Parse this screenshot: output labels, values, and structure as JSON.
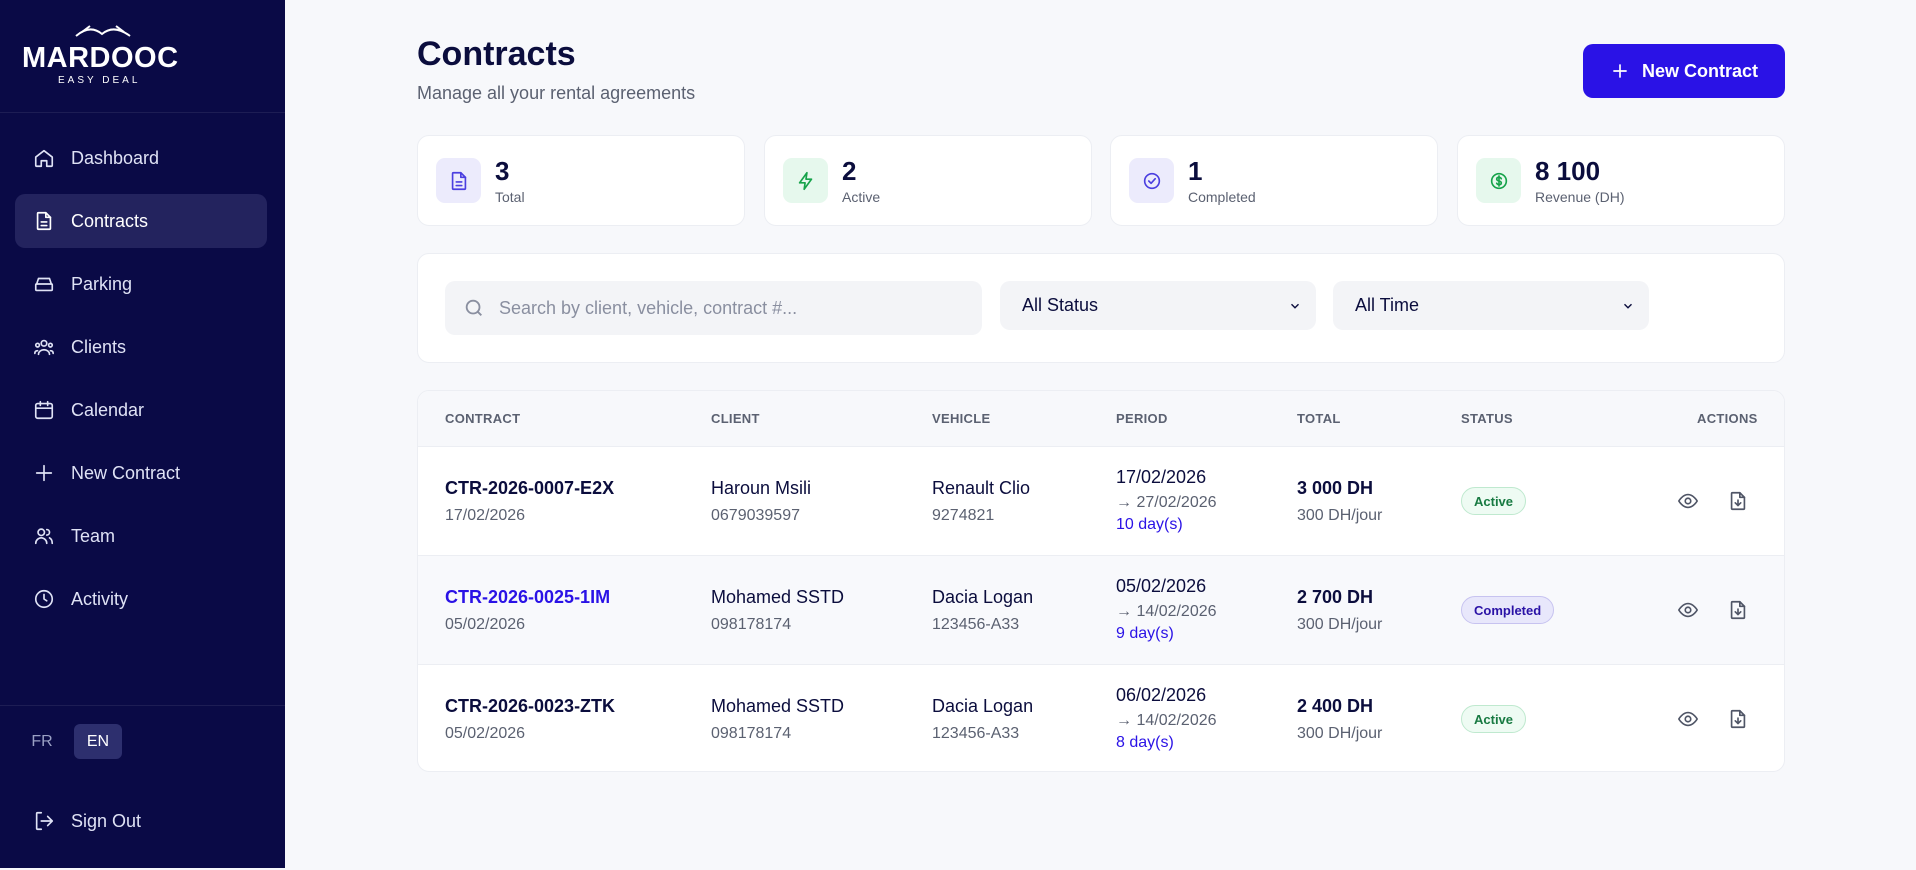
{
  "brand": {
    "name": "MARDOOC",
    "tagline": "EASY DEAL"
  },
  "sidebar": {
    "items": [
      {
        "label": "Dashboard",
        "icon": "home-icon"
      },
      {
        "label": "Contracts",
        "icon": "document-icon",
        "active": true
      },
      {
        "label": "Parking",
        "icon": "parking-icon"
      },
      {
        "label": "Clients",
        "icon": "users-icon"
      },
      {
        "label": "Calendar",
        "icon": "calendar-icon"
      },
      {
        "label": "New Contract",
        "icon": "plus-icon"
      },
      {
        "label": "Team",
        "icon": "team-icon"
      },
      {
        "label": "Activity",
        "icon": "clock-icon"
      }
    ],
    "lang": {
      "fr": "FR",
      "en": "EN",
      "selected": "EN"
    },
    "signout": "Sign Out"
  },
  "header": {
    "title": "Contracts",
    "subtitle": "Manage all your rental agreements",
    "new_button": "New Contract"
  },
  "stats": [
    {
      "value": "3",
      "label": "Total",
      "icon": "document-icon",
      "color": "#4b3fe0"
    },
    {
      "value": "2",
      "label": "Active",
      "icon": "bolt-icon",
      "color": "#16a34a"
    },
    {
      "value": "1",
      "label": "Completed",
      "icon": "check-circle-icon",
      "color": "#4b3fe0"
    },
    {
      "value": "8 100",
      "label": "Revenue (DH)",
      "icon": "dollar-icon",
      "color": "#16a34a"
    }
  ],
  "filters": {
    "search_placeholder": "Search by client, vehicle, contract #...",
    "status": "All Status",
    "time": "All Time"
  },
  "table": {
    "headers": {
      "contract": "CONTRACT",
      "client": "CLIENT",
      "vehicle": "VEHICLE",
      "period": "PERIOD",
      "total": "TOTAL",
      "status": "STATUS",
      "actions": "ACTIONS"
    },
    "rows": [
      {
        "number": "CTR-2026-0007-E2X",
        "date": "17/02/2026",
        "client": "Haroun Msili",
        "phone": "0679039597",
        "vehicle": "Renault Clio",
        "plate": "9274821",
        "start": "17/02/2026",
        "end": "→ 27/02/2026",
        "days": "10 day(s)",
        "total": "3 000 DH",
        "rate": "300 DH/jour",
        "status": "Active"
      },
      {
        "number": "CTR-2026-0025-1IM",
        "date": "05/02/2026",
        "client": "Mohamed SSTD",
        "phone": "098178174",
        "vehicle": "Dacia Logan",
        "plate": "123456-A33",
        "start": "05/02/2026",
        "end": "→ 14/02/2026",
        "days": "9 day(s)",
        "total": "2 700 DH",
        "rate": "300 DH/jour",
        "status": "Completed"
      },
      {
        "number": "CTR-2026-0023-ZTK",
        "date": "05/02/2026",
        "client": "Mohamed SSTD",
        "phone": "098178174",
        "vehicle": "Dacia Logan",
        "plate": "123456-A33",
        "start": "06/02/2026",
        "end": "→ 14/02/2026",
        "days": "8 day(s)",
        "total": "2 400 DH",
        "rate": "300 DH/jour",
        "status": "Active"
      }
    ]
  }
}
